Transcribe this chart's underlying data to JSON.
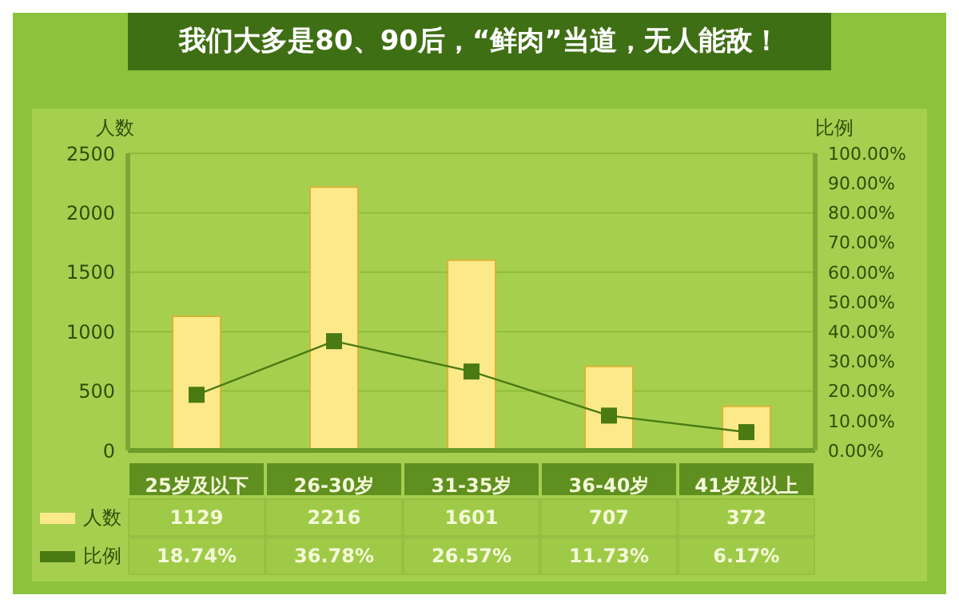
{
  "chart_data": {
    "type": "bar",
    "title": "我们大多是80、90后，“鲜肉”当道，无人能敌！",
    "ylabel": "人数",
    "y2label": "比例",
    "categories": [
      "25岁及以下",
      "26-30岁",
      "31-35岁",
      "36-40岁",
      "41岁及以上"
    ],
    "series": [
      {
        "name": "人数",
        "color": "#fbe98a",
        "values": [
          1129,
          2216,
          1601,
          707,
          372
        ],
        "value_labels": [
          "1129",
          "2216",
          "1601",
          "707",
          "372"
        ]
      },
      {
        "name": "比例",
        "type": "line",
        "axis": "y2",
        "color": "#4a7a12",
        "values": [
          18.74,
          36.78,
          26.57,
          11.73,
          6.17
        ],
        "value_labels": [
          "18.74%",
          "36.78%",
          "26.57%",
          "11.73%",
          "6.17%"
        ]
      }
    ],
    "ylim": [
      0,
      2500
    ],
    "yticks": [
      0,
      500,
      1000,
      1500,
      2000,
      2500
    ],
    "y2lim": [
      0,
      100
    ],
    "y2ticks": [
      {
        "value": 0,
        "label": "0.00%"
      },
      {
        "value": 10,
        "label": "10.00%"
      },
      {
        "value": 20,
        "label": "20.00%"
      },
      {
        "value": 30,
        "label": "30.00%"
      },
      {
        "value": 40,
        "label": "40.00%"
      },
      {
        "value": 50,
        "label": "50.00%"
      },
      {
        "value": 60,
        "label": "60.00%"
      },
      {
        "value": 70,
        "label": "70.00%"
      },
      {
        "value": 80,
        "label": "80.00%"
      },
      {
        "value": 90,
        "label": "90.00%"
      },
      {
        "value": 100,
        "label": "100.00%"
      }
    ],
    "grid": "y",
    "marker": "square",
    "line_style": "solid",
    "legend": "bottom left"
  }
}
